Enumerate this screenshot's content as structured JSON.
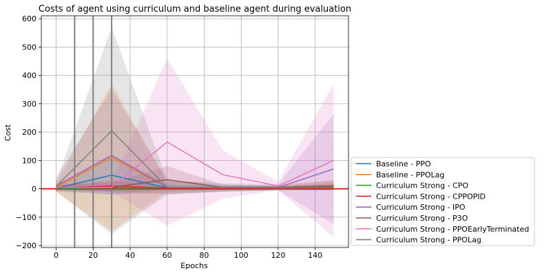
{
  "chart_data": {
    "type": "line",
    "title": "Costs of agent using curriculum and baseline agent during evaluation",
    "xlabel": "Epochs",
    "ylabel": "Cost",
    "xlim": [
      -8,
      158
    ],
    "ylim": [
      -207,
      610
    ],
    "xticks": [
      0,
      20,
      40,
      60,
      80,
      100,
      120,
      140
    ],
    "yticks": [
      -200,
      -100,
      0,
      100,
      200,
      300,
      400,
      500,
      600
    ],
    "grid": true,
    "legend_position": "lower-right-outside",
    "vertical_lines": [
      10,
      20,
      30
    ],
    "horizontal_line": 0,
    "series": [
      {
        "name": "Baseline - PPO",
        "color": "#1f77b4",
        "x": [
          0,
          30,
          60,
          90,
          120,
          150
        ],
        "y": [
          2,
          48,
          3,
          2,
          2,
          7
        ],
        "band_low": [
          -5,
          -20,
          -5,
          -5,
          -3,
          -5
        ],
        "band_high": [
          10,
          120,
          15,
          10,
          8,
          20
        ]
      },
      {
        "name": "Baseline - PPOLag",
        "color": "#ff7f0e",
        "x": [
          0,
          30,
          60,
          90,
          120,
          150
        ],
        "y": [
          5,
          110,
          5,
          3,
          5,
          12
        ],
        "band_low": [
          -10,
          -150,
          -10,
          -5,
          -5,
          -5
        ],
        "band_high": [
          20,
          370,
          25,
          10,
          15,
          30
        ]
      },
      {
        "name": "Curriculum Strong - CPO",
        "color": "#2ca02c",
        "x": [
          0,
          30,
          60,
          90,
          120,
          150
        ],
        "y": [
          1,
          3,
          2,
          1,
          1,
          2
        ],
        "band_low": [
          -3,
          -5,
          -3,
          -3,
          -3,
          -3
        ],
        "band_high": [
          5,
          10,
          6,
          5,
          5,
          6
        ]
      },
      {
        "name": "Curriculum Strong - CPPOPID",
        "color": "#d62728",
        "x": [
          0,
          30,
          60,
          90,
          120,
          150
        ],
        "y": [
          3,
          10,
          2,
          1,
          1,
          1
        ],
        "band_low": [
          -5,
          -10,
          -3,
          -3,
          -3,
          -3
        ],
        "band_high": [
          10,
          30,
          8,
          5,
          5,
          5
        ]
      },
      {
        "name": "Curriculum Strong - IPO",
        "color": "#9467bd",
        "x": [
          0,
          30,
          60,
          90,
          120,
          150
        ],
        "y": [
          10,
          118,
          5,
          5,
          5,
          70
        ],
        "band_low": [
          -10,
          -20,
          -15,
          -10,
          -5,
          -125
        ],
        "band_high": [
          40,
          350,
          30,
          20,
          15,
          265
        ]
      },
      {
        "name": "Curriculum Strong - P3O",
        "color": "#8c564b",
        "x": [
          0,
          30,
          60,
          90,
          120,
          150
        ],
        "y": [
          5,
          5,
          32,
          5,
          5,
          10
        ],
        "band_low": [
          -5,
          -10,
          -20,
          -10,
          -5,
          -5
        ],
        "band_high": [
          15,
          20,
          80,
          15,
          10,
          30
        ]
      },
      {
        "name": "Curriculum Strong - PPOEarlyTerminated",
        "color": "#e377c2",
        "x": [
          0,
          30,
          60,
          90,
          120,
          150
        ],
        "y": [
          5,
          5,
          165,
          50,
          10,
          100
        ],
        "band_low": [
          -10,
          -10,
          -130,
          -35,
          -5,
          -170
        ],
        "band_high": [
          20,
          20,
          460,
          135,
          25,
          370
        ]
      },
      {
        "name": "Curriculum Strong - PPOLag",
        "color": "#7f7f7f",
        "x": [
          0,
          30,
          60,
          90,
          120,
          150
        ],
        "y": [
          8,
          205,
          5,
          5,
          3,
          5
        ],
        "band_low": [
          -10,
          -160,
          -20,
          -10,
          -5,
          -5
        ],
        "band_high": [
          25,
          570,
          30,
          15,
          10,
          15
        ]
      }
    ]
  }
}
